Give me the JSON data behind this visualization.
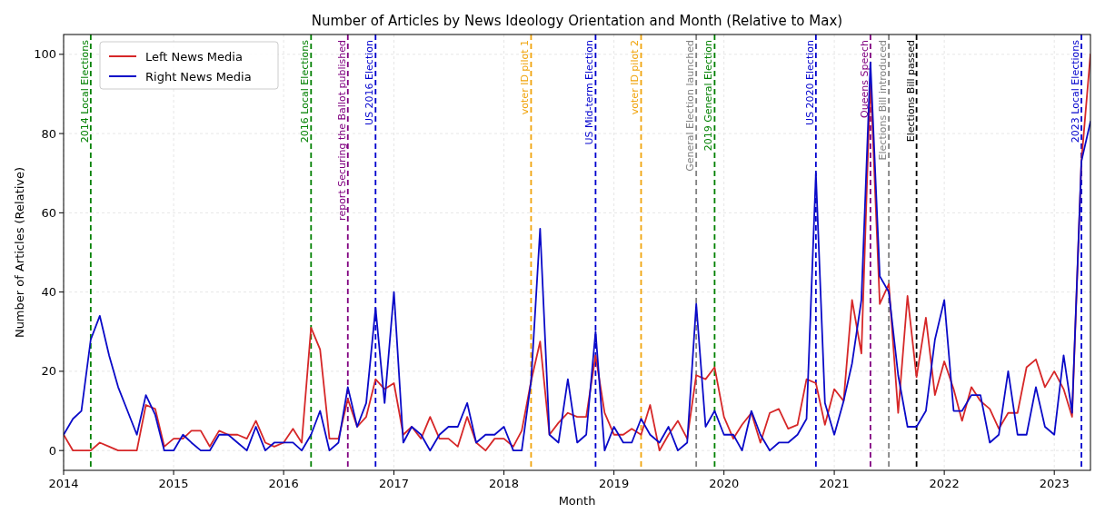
{
  "chart_data": {
    "type": "line",
    "title": "Number of Articles by News Ideology Orientation and Month (Relative to Max)",
    "xlabel": "Month",
    "ylabel": "Number of Articles (Relative)",
    "x": [
      "2014-01",
      "2014-02",
      "2014-03",
      "2014-04",
      "2014-05",
      "2014-06",
      "2014-07",
      "2014-08",
      "2014-09",
      "2014-10",
      "2014-11",
      "2014-12",
      "2015-01",
      "2015-02",
      "2015-03",
      "2015-04",
      "2015-05",
      "2015-06",
      "2015-07",
      "2015-08",
      "2015-09",
      "2015-10",
      "2015-11",
      "2015-12",
      "2016-01",
      "2016-02",
      "2016-03",
      "2016-04",
      "2016-05",
      "2016-06",
      "2016-07",
      "2016-08",
      "2016-09",
      "2016-10",
      "2016-11",
      "2016-12",
      "2017-01",
      "2017-02",
      "2017-03",
      "2017-04",
      "2017-05",
      "2017-06",
      "2017-07",
      "2017-08",
      "2017-09",
      "2017-10",
      "2017-11",
      "2017-12",
      "2018-01",
      "2018-02",
      "2018-03",
      "2018-04",
      "2018-05",
      "2018-06",
      "2018-07",
      "2018-08",
      "2018-09",
      "2018-10",
      "2018-11",
      "2018-12",
      "2019-01",
      "2019-02",
      "2019-03",
      "2019-04",
      "2019-05",
      "2019-06",
      "2019-07",
      "2019-08",
      "2019-09",
      "2019-10",
      "2019-11",
      "2019-12",
      "2020-01",
      "2020-02",
      "2020-03",
      "2020-04",
      "2020-05",
      "2020-06",
      "2020-07",
      "2020-08",
      "2020-09",
      "2020-10",
      "2020-11",
      "2020-12",
      "2021-01",
      "2021-02",
      "2021-03",
      "2021-04",
      "2021-05",
      "2021-06",
      "2021-07",
      "2021-08",
      "2021-09",
      "2021-10",
      "2021-11",
      "2021-12",
      "2022-01",
      "2022-02",
      "2022-03",
      "2022-04",
      "2022-05",
      "2022-06",
      "2022-07",
      "2022-08",
      "2022-09",
      "2022-10",
      "2022-11",
      "2022-12",
      "2023-01",
      "2023-02",
      "2023-03",
      "2023-04",
      "2023-05"
    ],
    "series": [
      {
        "name": "Left News Media",
        "color": "#d62728",
        "values": [
          4,
          0,
          0,
          0,
          2,
          1,
          0,
          0,
          0,
          11.5,
          10.5,
          1,
          3,
          3,
          5,
          5,
          1,
          5,
          4,
          4,
          3,
          7.5,
          2,
          1,
          2,
          5.5,
          2,
          31,
          25.5,
          3,
          3,
          13,
          6,
          8.5,
          18,
          15.5,
          17,
          4,
          6,
          3,
          8.5,
          3,
          3,
          1,
          8.5,
          2,
          0,
          3,
          3,
          1,
          5,
          17.5,
          27.5,
          4,
          7,
          9.5,
          8.5,
          8.5,
          24,
          9.5,
          4,
          4,
          5.5,
          4,
          11.5,
          0,
          4,
          7.5,
          3,
          19,
          18,
          21,
          8.5,
          3,
          6.5,
          9.5,
          2,
          9.5,
          10.5,
          5.5,
          6.5,
          18,
          17,
          6.5,
          15.5,
          12.5,
          38,
          24.5,
          94,
          37,
          42,
          9.5,
          39,
          18.5,
          33.5,
          14,
          22.5,
          15.5,
          7.5,
          16,
          12.5,
          10.5,
          5.5,
          9.5,
          9.5,
          21,
          23,
          16,
          20,
          15.5,
          8.5,
          73,
          100
        ]
      },
      {
        "name": "Right News Media",
        "color": "#0a0ac8",
        "values": [
          4,
          8,
          10,
          28,
          34,
          24,
          16,
          10,
          4,
          14,
          9,
          0,
          0,
          4,
          2,
          0,
          0,
          4,
          4,
          2,
          0,
          6,
          0,
          2,
          2,
          2,
          0,
          4,
          10,
          0,
          2,
          16,
          6,
          12,
          36,
          12,
          40,
          2,
          6,
          4,
          0,
          4,
          6,
          6,
          12,
          2,
          4,
          4,
          6,
          0,
          0,
          17.5,
          56,
          4,
          2,
          18,
          2,
          4,
          30,
          0,
          6,
          2,
          2,
          8,
          4,
          2,
          6,
          0,
          2,
          37,
          6,
          10,
          4,
          4,
          0,
          10,
          4,
          0,
          2,
          2,
          4,
          8,
          70,
          12,
          4,
          12.5,
          22,
          38,
          98,
          44,
          40,
          19,
          6,
          6,
          10,
          28,
          38,
          10,
          10,
          14,
          14,
          2,
          4,
          20,
          4,
          4,
          16,
          6,
          4,
          24,
          9.5,
          73,
          83
        ]
      }
    ],
    "xlim": [
      "2014-01",
      "2023-05"
    ],
    "xticks": [
      "2014",
      "2015",
      "2016",
      "2017",
      "2018",
      "2019",
      "2020",
      "2021",
      "2022",
      "2023"
    ],
    "ylim": [
      -5,
      105
    ],
    "yticks": [
      0,
      20,
      40,
      60,
      80,
      100
    ],
    "grid": true,
    "legend": "top left",
    "line_style": "solid",
    "marker": "none",
    "ref_lines": [
      {
        "axis": "x",
        "value": "2014-04",
        "label": "2014 Local Elections",
        "color": "#008000",
        "line_style": "dashed"
      },
      {
        "axis": "x",
        "value": "2016-04",
        "label": "2016 Local Elections",
        "color": "#008000",
        "line_style": "dashed"
      },
      {
        "axis": "x",
        "value": "2016-08",
        "label": "report Securing the Ballot published",
        "color": "#800080",
        "line_style": "dashed"
      },
      {
        "axis": "x",
        "value": "2016-11",
        "label": "US 2016 Election",
        "color": "#0000cd",
        "line_style": "dashed"
      },
      {
        "axis": "x",
        "value": "2018-04",
        "label": "voter ID pilot 1",
        "color": "#f0a30a",
        "line_style": "dashed"
      },
      {
        "axis": "x",
        "value": "2018-11",
        "label": "US Mid-term Election",
        "color": "#0000cd",
        "line_style": "dashed"
      },
      {
        "axis": "x",
        "value": "2019-04",
        "label": "voter ID pilot 2",
        "color": "#f0a30a",
        "line_style": "dashed"
      },
      {
        "axis": "x",
        "value": "2019-10",
        "label": "General Election launched",
        "color": "#808080",
        "line_style": "dashed"
      },
      {
        "axis": "x",
        "value": "2019-12",
        "label": "2019 General Election",
        "color": "#008000",
        "line_style": "dashed"
      },
      {
        "axis": "x",
        "value": "2020-11",
        "label": "US 2020 Election",
        "color": "#0000cd",
        "line_style": "dashed"
      },
      {
        "axis": "x",
        "value": "2021-05",
        "label": "Queens Speech",
        "color": "#800080",
        "line_style": "dashed"
      },
      {
        "axis": "x",
        "value": "2021-07",
        "label": "Elections Bill introduced",
        "color": "#808080",
        "line_style": "dashed"
      },
      {
        "axis": "x",
        "value": "2021-10",
        "label": "Elections Bill passed",
        "color": "#000000",
        "line_style": "dashed"
      },
      {
        "axis": "x",
        "value": "2023-04",
        "label": "2023 Local Elections",
        "color": "#0000cd",
        "line_style": "dashed"
      }
    ]
  }
}
